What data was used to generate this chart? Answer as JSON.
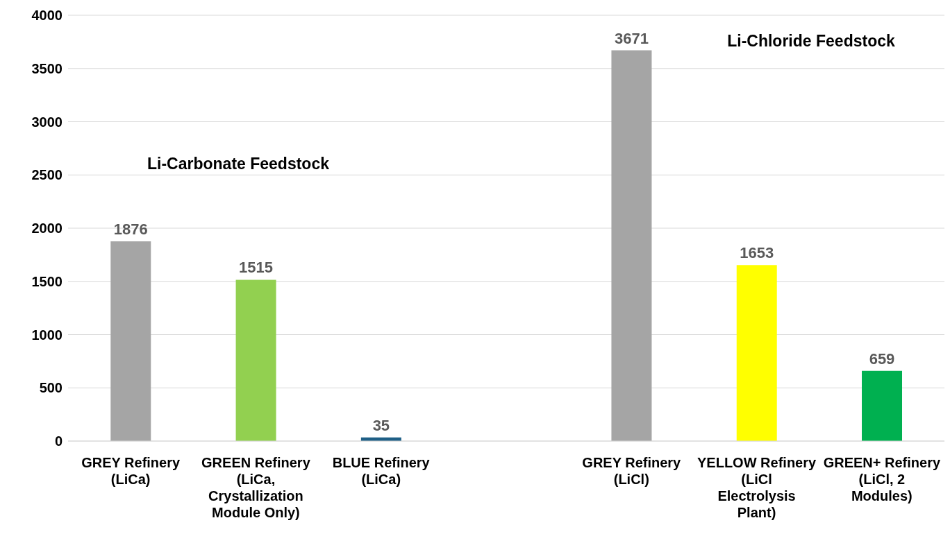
{
  "chart_data": {
    "type": "bar",
    "categories": [
      "GREY Refinery (LiCa)",
      "GREEN Refinery (LiCa, Crystallization Module Only)",
      "BLUE Refinery (LiCa)",
      null,
      "GREY Refinery (LiCl)",
      "YELLOW Refinery (LiCl Electrolysis Plant)",
      "GREEN+ Refinery (LiCl, 2 Modules)"
    ],
    "values": [
      1876,
      1515,
      35,
      null,
      3671,
      1653,
      659
    ],
    "colors": [
      "#a5a5a5",
      "#92d050",
      "#1f5f86",
      "#ffffff",
      "#a5a5a5",
      "#ffff00",
      "#00b050"
    ],
    "ylim": [
      0,
      4000
    ],
    "yticks": [
      0,
      500,
      1000,
      1500,
      2000,
      2500,
      3000,
      3500,
      4000
    ],
    "grid": "y",
    "data_labels": true,
    "annotations": [
      "Li-Carbonate Feedstock",
      "Li-Chloride Feedstock"
    ]
  }
}
